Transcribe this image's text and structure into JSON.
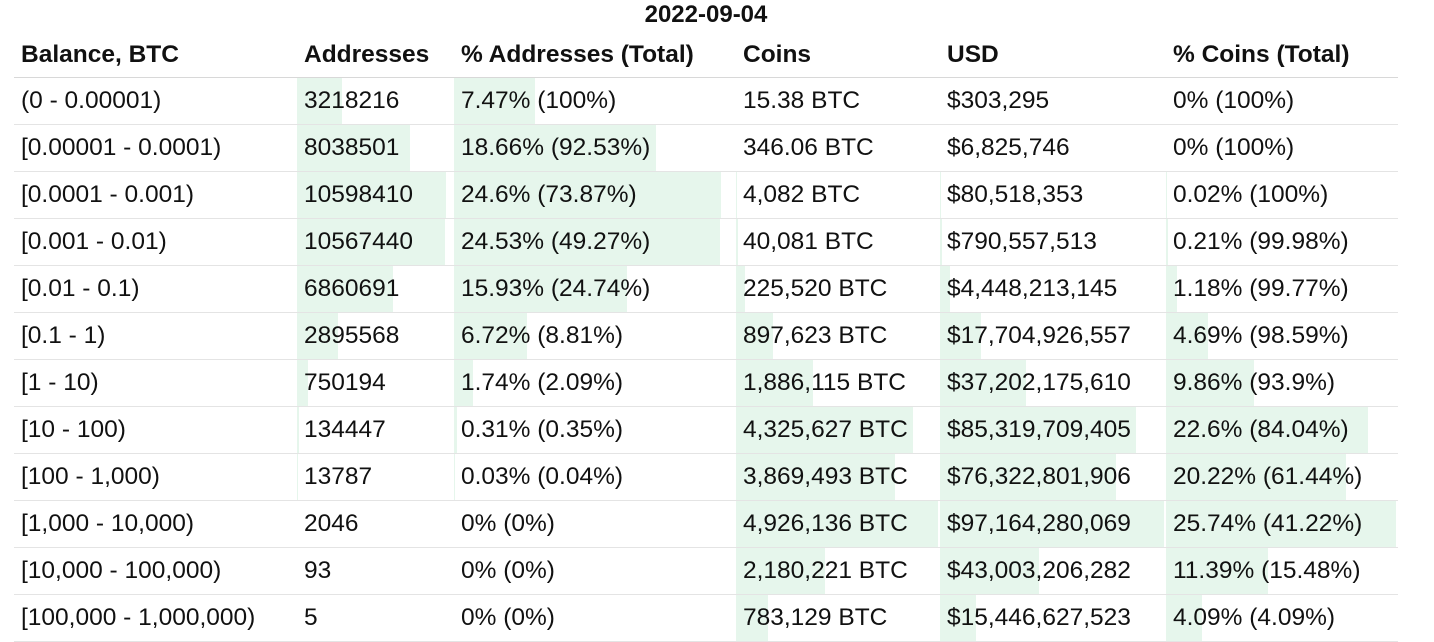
{
  "title": "2022-09-04",
  "headers": {
    "balance": "Balance, BTC",
    "addresses": "Addresses",
    "pct_addresses": "% Addresses (Total)",
    "coins": "Coins",
    "usd": "USD",
    "pct_coins": "% Coins (Total)"
  },
  "bar_color": "#e6f6ec",
  "rows": [
    {
      "balance": "(0 - 0.00001)",
      "addresses": "3218216",
      "pct_addresses": "7.47% (100%)",
      "coins": "15.38 BTC",
      "usd": "$303,295",
      "pct_coins": "0% (100%)",
      "addr_share": 0.0747,
      "coin_share": 0.0
    },
    {
      "balance": "[0.00001 - 0.0001)",
      "addresses": "8038501",
      "pct_addresses": "18.66% (92.53%)",
      "coins": "346.06 BTC",
      "usd": "$6,825,746",
      "pct_coins": "0% (100%)",
      "addr_share": 0.1866,
      "coin_share": 0.0
    },
    {
      "balance": "[0.0001 - 0.001)",
      "addresses": "10598410",
      "pct_addresses": "24.6% (73.87%)",
      "coins": "4,082 BTC",
      "usd": "$80,518,353",
      "pct_coins": "0.02% (100%)",
      "addr_share": 0.246,
      "coin_share": 0.0002
    },
    {
      "balance": "[0.001 - 0.01)",
      "addresses": "10567440",
      "pct_addresses": "24.53% (49.27%)",
      "coins": "40,081 BTC",
      "usd": "$790,557,513",
      "pct_coins": "0.21% (99.98%)",
      "addr_share": 0.2453,
      "coin_share": 0.0021
    },
    {
      "balance": "[0.01 - 0.1)",
      "addresses": "6860691",
      "pct_addresses": "15.93% (24.74%)",
      "coins": "225,520 BTC",
      "usd": "$4,448,213,145",
      "pct_coins": "1.18% (99.77%)",
      "addr_share": 0.1593,
      "coin_share": 0.0118
    },
    {
      "balance": "[0.1 - 1)",
      "addresses": "2895568",
      "pct_addresses": "6.72% (8.81%)",
      "coins": "897,623 BTC",
      "usd": "$17,704,926,557",
      "pct_coins": "4.69% (98.59%)",
      "addr_share": 0.0672,
      "coin_share": 0.0469
    },
    {
      "balance": "[1 - 10)",
      "addresses": "750194",
      "pct_addresses": "1.74% (2.09%)",
      "coins": "1,886,115 BTC",
      "usd": "$37,202,175,610",
      "pct_coins": "9.86% (93.9%)",
      "addr_share": 0.0174,
      "coin_share": 0.0986
    },
    {
      "balance": "[10 - 100)",
      "addresses": "134447",
      "pct_addresses": "0.31% (0.35%)",
      "coins": "4,325,627 BTC",
      "usd": "$85,319,709,405",
      "pct_coins": "22.6% (84.04%)",
      "addr_share": 0.0031,
      "coin_share": 0.226
    },
    {
      "balance": "[100 - 1,000)",
      "addresses": "13787",
      "pct_addresses": "0.03% (0.04%)",
      "coins": "3,869,493 BTC",
      "usd": "$76,322,801,906",
      "pct_coins": "20.22% (61.44%)",
      "addr_share": 0.0003,
      "coin_share": 0.2022
    },
    {
      "balance": "[1,000 - 10,000)",
      "addresses": "2046",
      "pct_addresses": "0% (0%)",
      "coins": "4,926,136 BTC",
      "usd": "$97,164,280,069",
      "pct_coins": "25.74% (41.22%)",
      "addr_share": 0.0,
      "coin_share": 0.2574
    },
    {
      "balance": "[10,000 - 100,000)",
      "addresses": "93",
      "pct_addresses": "0% (0%)",
      "coins": "2,180,221 BTC",
      "usd": "$43,003,206,282",
      "pct_coins": "11.39% (15.48%)",
      "addr_share": 0.0,
      "coin_share": 0.1139
    },
    {
      "balance": "[100,000 - 1,000,000)",
      "addresses": "5",
      "pct_addresses": "0% (0%)",
      "coins": "783,129 BTC",
      "usd": "$15,446,627,523",
      "pct_coins": "4.09% (4.09%)",
      "addr_share": 0.0,
      "coin_share": 0.0409
    }
  ]
}
